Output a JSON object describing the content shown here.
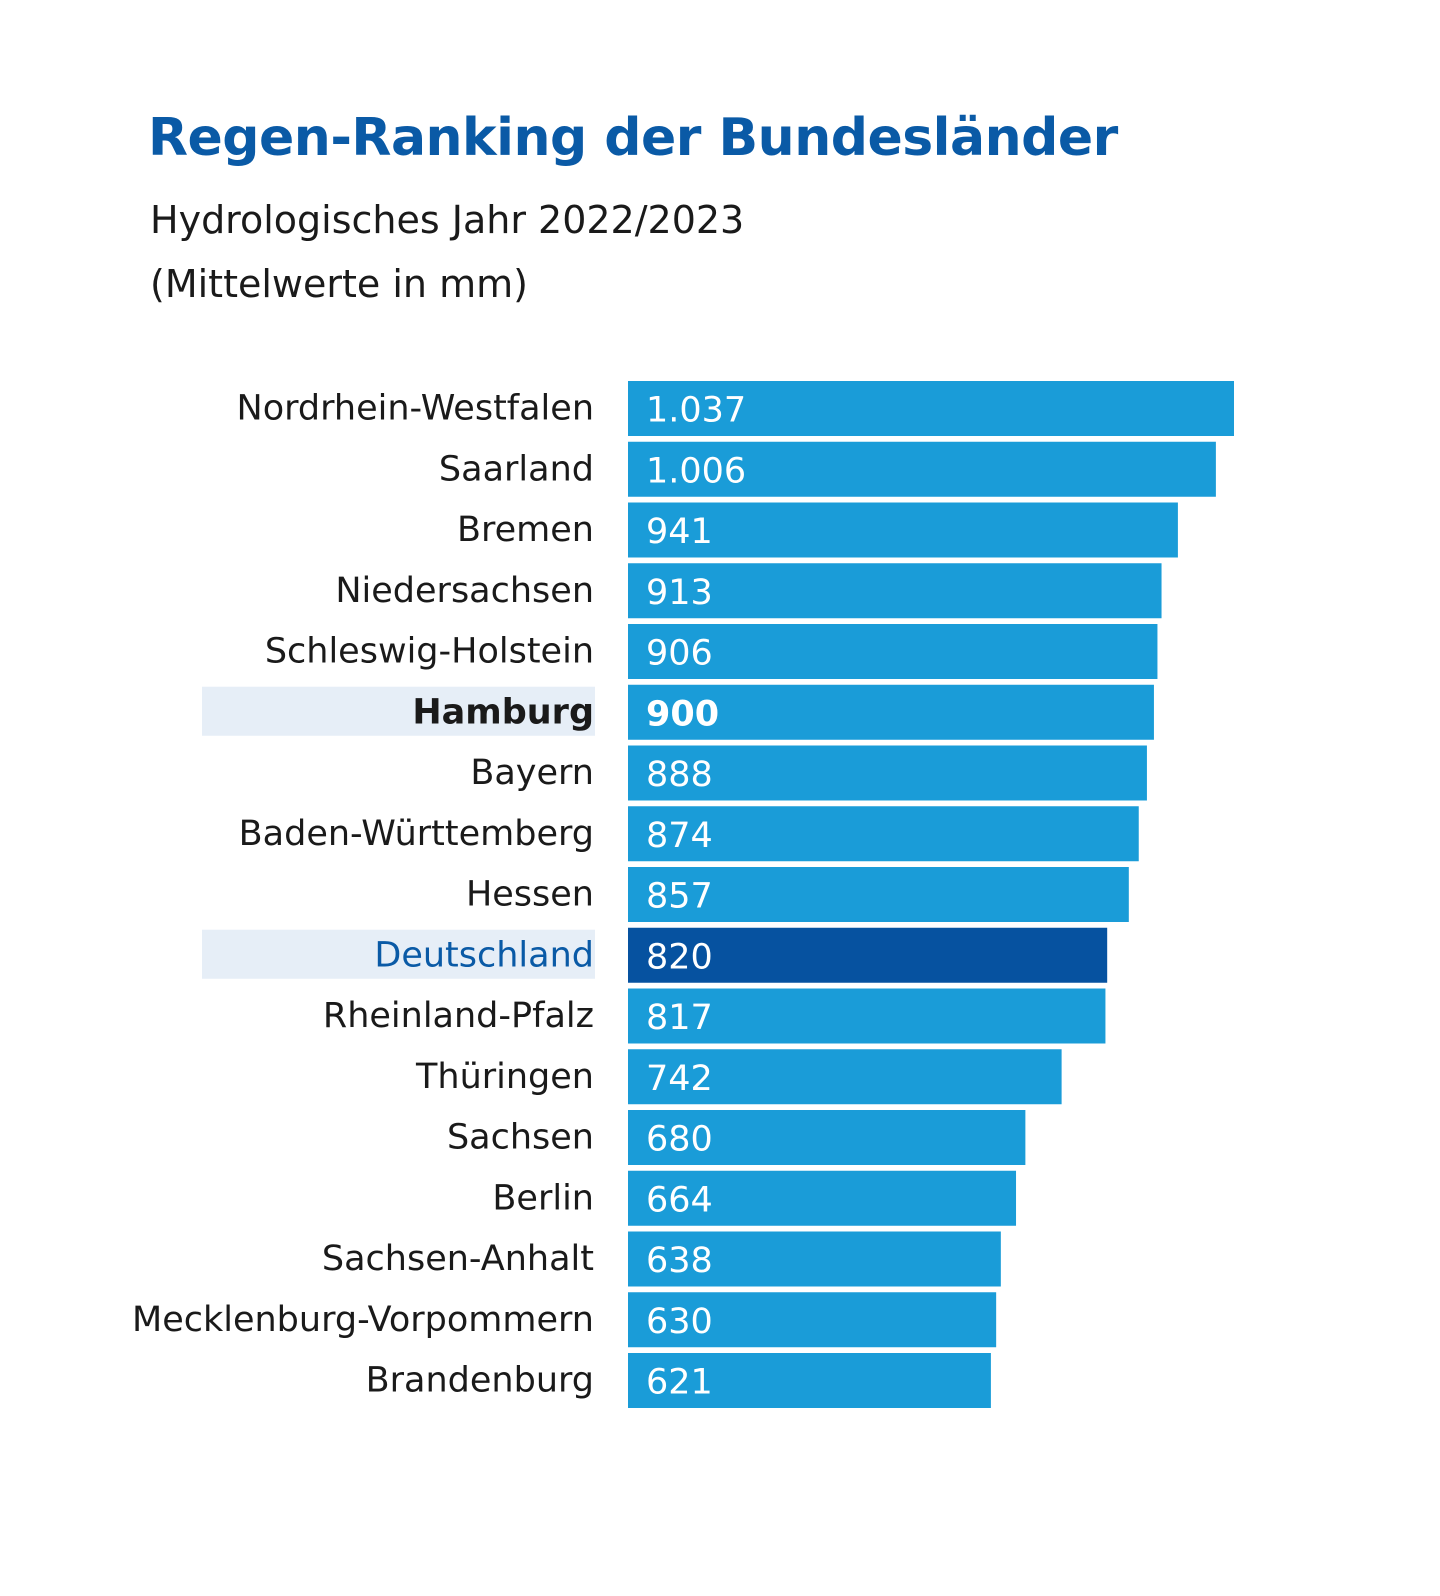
{
  "chart_data": {
    "type": "bar",
    "orientation": "horizontal",
    "title": "Regen-Ranking der Bundesländer",
    "subtitle_lines": [
      "Hydrologisches Jahr 2022/2023",
      "(Mittelwerte in mm)"
    ],
    "xlim": [
      0,
      1037
    ],
    "grid": false,
    "legend": "none",
    "categories": [
      "Nordrhein-Westfalen",
      "Saarland",
      "Bremen",
      "Niedersachsen",
      "Schleswig-Holstein",
      "Hamburg",
      "Bayern",
      "Baden-Württemberg",
      "Hessen",
      "Deutschland",
      "Rheinland-Pfalz",
      "Thüringen",
      "Sachsen",
      "Berlin",
      "Sachsen-Anhalt",
      "Mecklenburg-Vorpommern",
      "Brandenburg"
    ],
    "values": [
      1037,
      1006,
      941,
      913,
      906,
      900,
      888,
      874,
      857,
      820,
      817,
      742,
      680,
      664,
      638,
      630,
      621
    ],
    "value_labels": [
      "1.037",
      "1.006",
      "941",
      "913",
      "906",
      "900",
      "888",
      "874",
      "857",
      "820",
      "817",
      "742",
      "680",
      "664",
      "638",
      "630",
      "621"
    ],
    "highlighted": {
      "Hamburg": "bold",
      "Deutschland": "average"
    },
    "colors": {
      "title": "#0a5aa6",
      "bar": "#1a9cd8",
      "bar_average": "#0652a0",
      "label": "#1a1a1a",
      "label_average": "#0a5aa6",
      "highlight_background": "#e6eef7",
      "value_text": "#ffffff"
    }
  }
}
